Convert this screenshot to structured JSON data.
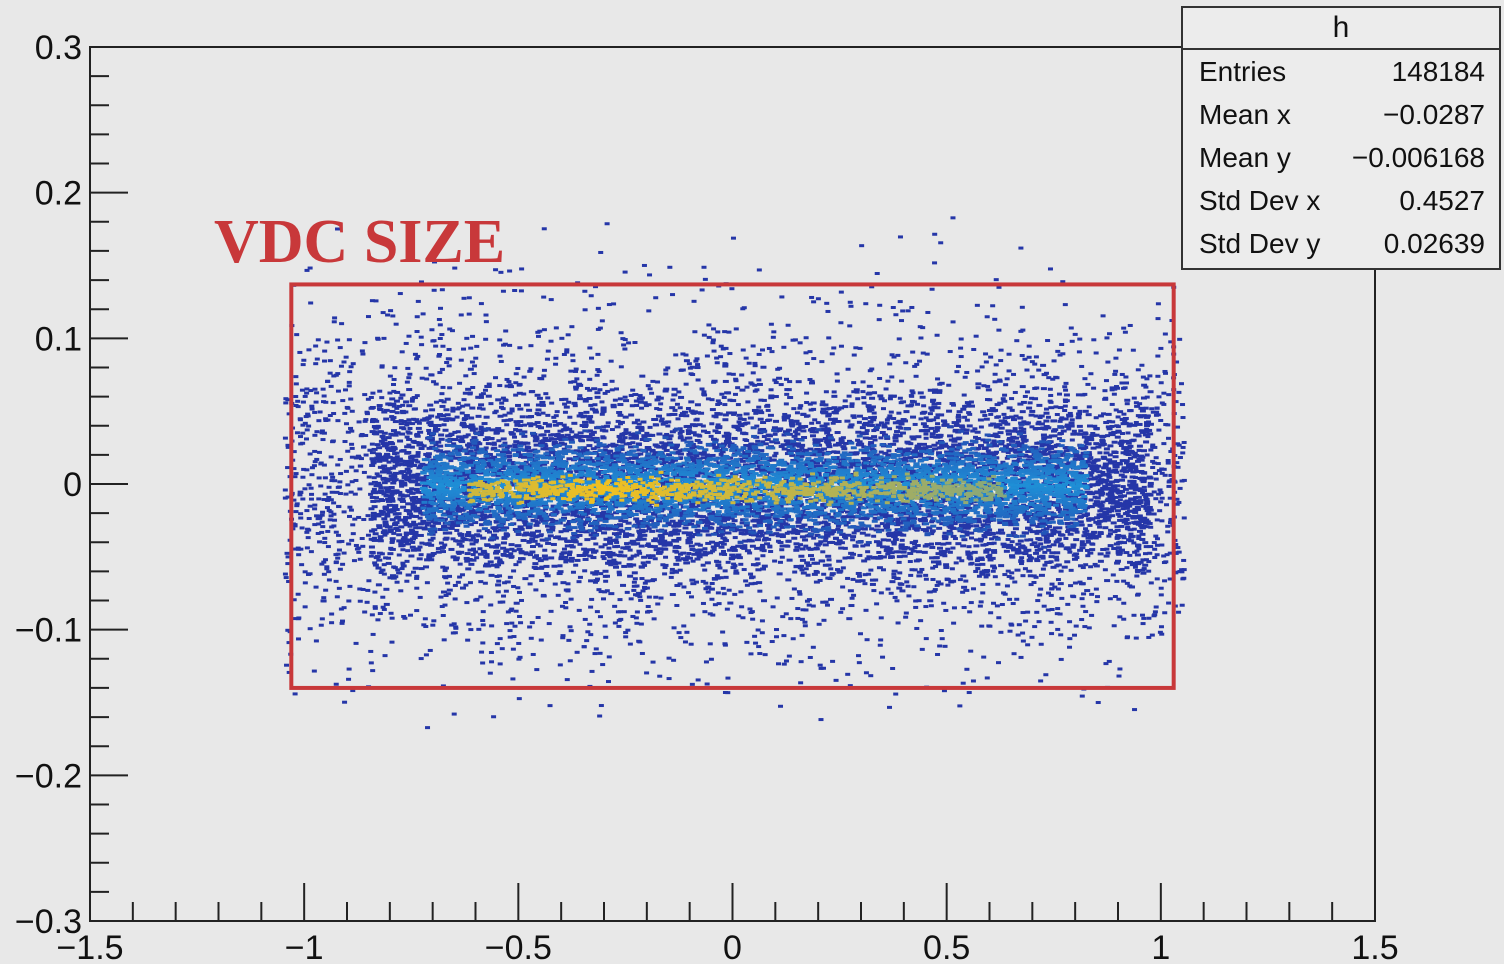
{
  "chart_data": {
    "type": "heatmap",
    "title": "",
    "xlabel": "",
    "ylabel": "",
    "xlim": [
      -1.5,
      1.5
    ],
    "ylim": [
      -0.3,
      0.3
    ],
    "x_ticks": [
      "−1.5",
      "−1",
      "−0.5",
      "0",
      "0.5",
      "1",
      "1.5"
    ],
    "x_tick_values": [
      -1.5,
      -1,
      -0.5,
      0,
      0.5,
      1,
      1.5
    ],
    "y_ticks": [
      "−0.3",
      "−0.2",
      "−0.1",
      "0",
      "0.1",
      "0.2",
      "0.3"
    ],
    "y_tick_values": [
      -0.3,
      -0.2,
      -0.1,
      0,
      0.1,
      0.2,
      0.3
    ],
    "distribution": {
      "core_x_range": [
        -0.75,
        0.85
      ],
      "core_y_range": [
        -0.05,
        0.05
      ],
      "peak_y": -0.003,
      "sparse_x_range": [
        -1.05,
        1.05
      ],
      "sparse_y_range": [
        -0.2,
        0.2
      ]
    },
    "colors": {
      "low": "#2536a8",
      "mid": "#1f8fd6",
      "high": "#f0c020"
    },
    "annotation": {
      "label": "VDC SIZE",
      "box_x_range": [
        -1.03,
        1.03
      ],
      "box_y_range": [
        -0.14,
        0.137
      ],
      "color": "#c8383a"
    },
    "stats_box": {
      "title": "h",
      "rows": [
        {
          "label": "Entries",
          "value": "148184"
        },
        {
          "label": "Mean x",
          "value": "−0.0287"
        },
        {
          "label": "Mean y",
          "value": "−0.006168"
        },
        {
          "label": "Std Dev x",
          "value": "0.4527"
        },
        {
          "label": "Std Dev y",
          "value": "0.02639"
        }
      ]
    }
  }
}
